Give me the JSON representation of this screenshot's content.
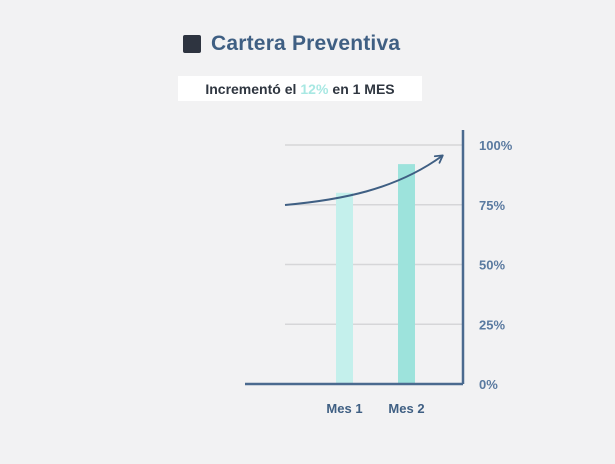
{
  "header": {
    "title": "Cartera Preventiva",
    "subtitle_prefix": "Incrementó el",
    "subtitle_highlight": "12%",
    "subtitle_suffix": "en 1 MES"
  },
  "colors": {
    "title": "#3f5f83",
    "highlight": "#a8e8e3",
    "bar_1": "#c4f0ec",
    "bar_2": "#9de3dc",
    "axis": "#4b6a8f",
    "grid": "#d6d6d8",
    "arrow": "#3f5f83"
  },
  "chart_data": {
    "type": "bar",
    "categories": [
      "Mes 1",
      "Mes 2"
    ],
    "values": [
      80,
      92
    ],
    "ylim": [
      0,
      100
    ],
    "yticks": [
      0,
      25,
      50,
      75,
      100
    ],
    "ytick_labels": [
      "0%",
      "25%",
      "50%",
      "75%",
      "100%"
    ],
    "xlabel": "",
    "ylabel": "",
    "grid": true,
    "y_axis_side": "right",
    "trend_arrow": true
  }
}
